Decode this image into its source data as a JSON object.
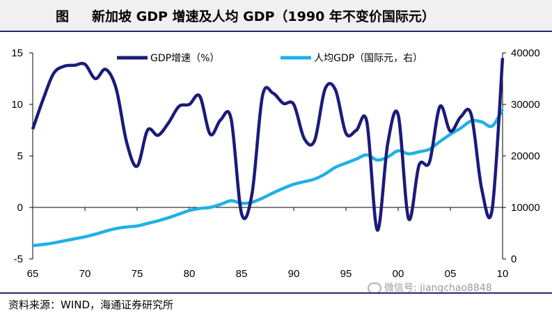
{
  "title": {
    "label": "图",
    "text": "新加坡 GDP 增速及人均 GDP（1990 年不变价国际元）"
  },
  "source": "资料来源：WIND，海通证券研究所",
  "watermark": "微信号: jiangchao8848",
  "colors": {
    "gdp_growth": "#1b1b7a",
    "gdp_per_capita": "#1fb1e6",
    "zero_line": "#000000"
  },
  "chart_data": {
    "type": "line",
    "x_tick_labels": [
      "65",
      "70",
      "75",
      "80",
      "85",
      "90",
      "95",
      "00",
      "05",
      "10"
    ],
    "xlim": [
      1965,
      2010
    ],
    "y_left": {
      "ylim": [
        -5,
        15
      ],
      "ticks": [
        -5,
        0,
        5,
        10,
        15
      ]
    },
    "y_right": {
      "ylim": [
        0,
        40000
      ],
      "ticks": [
        0,
        10000,
        20000,
        30000,
        40000
      ]
    },
    "legend": [
      "GDP增速（%）",
      "人均GDP（国际元，右）"
    ],
    "series": [
      {
        "name": "GDP增速（%）",
        "axis": "left",
        "x": [
          1965,
          1966,
          1967,
          1968,
          1969,
          1970,
          1971,
          1972,
          1973,
          1974,
          1975,
          1976,
          1977,
          1978,
          1979,
          1980,
          1981,
          1982,
          1983,
          1984,
          1985,
          1986,
          1987,
          1988,
          1989,
          1990,
          1991,
          1992,
          1993,
          1994,
          1995,
          1996,
          1997,
          1998,
          1999,
          2000,
          2001,
          2002,
          2003,
          2004,
          2005,
          2006,
          2007,
          2008,
          2009,
          2010
        ],
        "values": [
          7.6,
          10.5,
          13.0,
          13.7,
          13.8,
          13.9,
          12.5,
          13.4,
          11.5,
          6.3,
          4.0,
          7.5,
          7.0,
          8.2,
          9.8,
          10.0,
          10.8,
          7.1,
          8.5,
          8.6,
          -0.6,
          1.3,
          10.8,
          11.1,
          10.1,
          10.0,
          6.7,
          6.5,
          11.5,
          11.4,
          7.2,
          7.5,
          8.3,
          -2.2,
          6.2,
          9.0,
          -1.1,
          4.1,
          4.4,
          9.8,
          7.4,
          8.8,
          9.0,
          1.8,
          -0.2,
          14.5
        ]
      },
      {
        "name": "人均GDP（国际元，右）",
        "axis": "right",
        "x": [
          1965,
          1966,
          1967,
          1968,
          1969,
          1970,
          1971,
          1972,
          1973,
          1974,
          1975,
          1976,
          1977,
          1978,
          1979,
          1980,
          1981,
          1982,
          1983,
          1984,
          1985,
          1986,
          1987,
          1988,
          1989,
          1990,
          1991,
          1992,
          1993,
          1994,
          1995,
          1996,
          1997,
          1998,
          1999,
          2000,
          2001,
          2002,
          2003,
          2004,
          2005,
          2006,
          2007,
          2008,
          2009,
          2010
        ],
        "values": [
          2600,
          2800,
          3100,
          3500,
          3900,
          4300,
          4800,
          5400,
          5900,
          6200,
          6400,
          6900,
          7400,
          8000,
          8700,
          9400,
          9800,
          10000,
          10600,
          11300,
          10800,
          11000,
          11800,
          12800,
          13700,
          14500,
          15000,
          15500,
          16500,
          17800,
          18600,
          19400,
          20200,
          19200,
          19800,
          21000,
          20400,
          20800,
          21300,
          22800,
          24200,
          25400,
          26800,
          26600,
          25800,
          29000
        ]
      }
    ]
  }
}
